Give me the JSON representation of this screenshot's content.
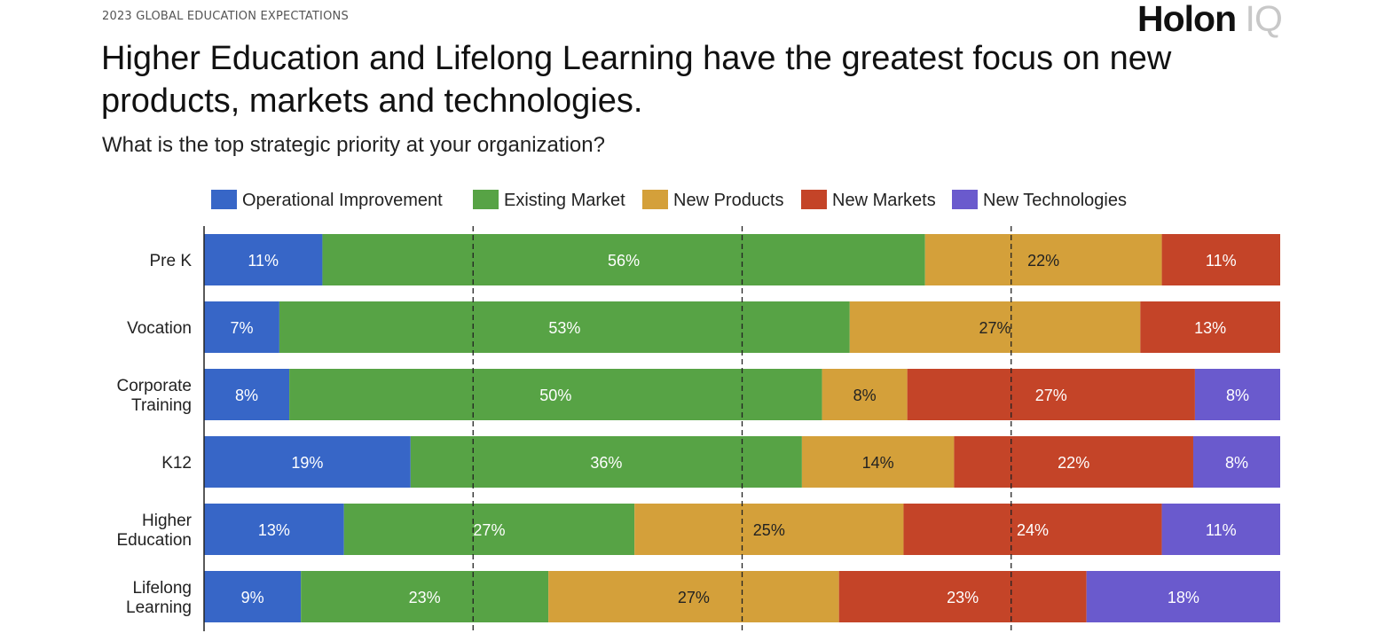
{
  "header": {
    "kicker": "2023 GLOBAL EDUCATION EXPECTATIONS",
    "logo": "Holon IQ",
    "title": "Higher Education and Lifelong Learning have the greatest focus on new products, markets and technologies.",
    "subtitle": "What is the top strategic priority at your organization?"
  },
  "chart_data": {
    "type": "bar",
    "orientation": "horizontal",
    "stacked": "100%",
    "title": "",
    "xlabel": "",
    "ylabel": "",
    "xlim": [
      0,
      100
    ],
    "grid": "dashed vertical lines at 25%, 50%, 75%",
    "legend_position": "top",
    "categories": [
      "Pre K",
      "Vocation",
      "Corporate Training",
      "K12",
      "Higher Education",
      "Lifelong Learning"
    ],
    "series": [
      {
        "name": "Operational Improvement",
        "color": "#3766c7",
        "values": [
          11,
          7,
          8,
          19,
          13,
          9
        ]
      },
      {
        "name": "Existing Market",
        "color": "#57a345",
        "values": [
          56,
          53,
          50,
          36,
          27,
          23
        ]
      },
      {
        "name": "New Products",
        "color": "#d4a03a",
        "values": [
          22,
          27,
          8,
          14,
          25,
          27
        ]
      },
      {
        "name": "New Markets",
        "color": "#c44428",
        "values": [
          11,
          13,
          27,
          22,
          24,
          23
        ]
      },
      {
        "name": "New Technologies",
        "color": "#6a5acd",
        "values": [
          0,
          0,
          8,
          8,
          11,
          18
        ]
      }
    ]
  }
}
